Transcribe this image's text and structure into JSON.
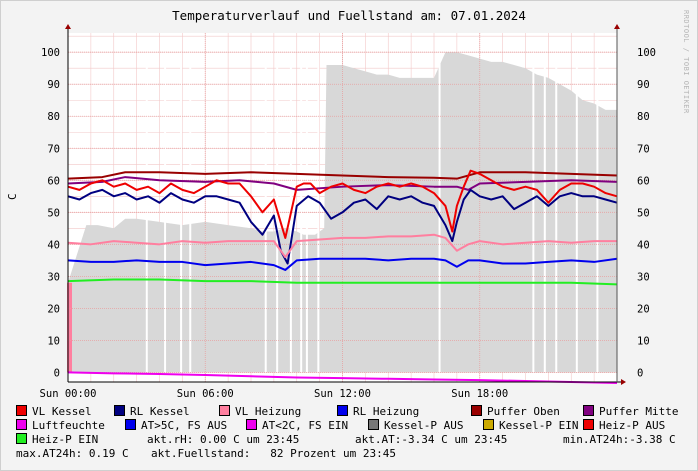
{
  "chart_data": {
    "type": "line",
    "title": "Temperaturverlauf und Fuellstand am: 07.01.2024",
    "ylabel": "C",
    "ylim": [
      -3,
      106
    ],
    "yticks": [
      0,
      10,
      20,
      30,
      40,
      50,
      60,
      70,
      80,
      90,
      100
    ],
    "xlim": [
      0,
      24
    ],
    "xticks": [
      {
        "hour": 0,
        "label": "Sun 00:00"
      },
      {
        "hour": 6,
        "label": "Sun 06:00"
      },
      {
        "hour": 12,
        "label": "Sun 12:00"
      },
      {
        "hour": 18,
        "label": "Sun 18:00"
      }
    ],
    "grid": true,
    "area": {
      "name": "Fuellstand",
      "color": "#d8d8d8",
      "x": [
        0,
        0.8,
        1.3,
        2.0,
        2.5,
        3.0,
        4.0,
        5.0,
        6.0,
        7.0,
        8.0,
        8.5,
        9.0,
        9.5,
        10.0,
        10.3,
        10.8,
        11.2,
        11.3,
        11.6,
        12.0,
        12.5,
        13.0,
        13.5,
        14.0,
        14.5,
        15.0,
        16.0,
        16.5,
        17.0,
        17.5,
        18.0,
        18.5,
        19.0,
        19.5,
        20.0,
        20.5,
        21.0,
        21.5,
        22.0,
        22.5,
        23.0,
        23.5,
        24.0
      ],
      "y": [
        28,
        46,
        46,
        45,
        48,
        48,
        47,
        46,
        47,
        46,
        45,
        44,
        44,
        45,
        44,
        43,
        43,
        45,
        96,
        96,
        96,
        95,
        94,
        93,
        93,
        92,
        92,
        92,
        100,
        100,
        99,
        98,
        97,
        97,
        96,
        95,
        93,
        92,
        90,
        88,
        85,
        84,
        82,
        82
      ]
    },
    "series": [
      {
        "name": "Puffer Oben",
        "color": "#990000",
        "x": [
          0,
          1.5,
          2.5,
          4,
          6,
          8,
          10,
          12,
          14,
          16,
          17,
          18,
          20,
          22,
          24
        ],
        "y": [
          60.5,
          61,
          62.5,
          62.5,
          62,
          62.5,
          62,
          61.5,
          61,
          60.8,
          60.5,
          62.5,
          62.5,
          62,
          61.5
        ]
      },
      {
        "name": "Puffer Mitte",
        "color": "#800080",
        "x": [
          0,
          1.5,
          2.5,
          4,
          6,
          7.5,
          9,
          10,
          12,
          14,
          16,
          17,
          17.5,
          18,
          20,
          22,
          24
        ],
        "y": [
          59,
          59.5,
          61,
          60,
          59.5,
          60,
          59,
          57,
          58,
          58.5,
          58,
          58,
          57,
          59,
          59.5,
          60,
          59.5
        ]
      },
      {
        "name": "VL Kessel",
        "color": "#ee0000",
        "x": [
          0,
          0.5,
          1,
          1.5,
          2,
          2.5,
          3,
          3.5,
          4,
          4.5,
          5,
          5.5,
          6,
          6.5,
          7,
          7.5,
          8,
          8.5,
          9,
          9.5,
          10,
          10.3,
          10.6,
          11,
          11.5,
          12,
          12.5,
          13,
          13.5,
          14,
          14.5,
          15,
          15.5,
          16,
          16.5,
          16.8,
          17,
          17.3,
          17.6,
          18,
          18.5,
          19,
          19.5,
          20,
          20.5,
          21,
          21.5,
          22,
          22.5,
          23,
          23.5,
          24
        ],
        "y": [
          58,
          57,
          59,
          60,
          58,
          59,
          57,
          58,
          56,
          59,
          57,
          56,
          58,
          60,
          59,
          59,
          55,
          50,
          54,
          42,
          58,
          59,
          59,
          56,
          58,
          59,
          57,
          56,
          58,
          59,
          58,
          59,
          58,
          56,
          52,
          44,
          52,
          58,
          63,
          62,
          60,
          58,
          57,
          58,
          57,
          53,
          57,
          59,
          59,
          58,
          56,
          55
        ]
      },
      {
        "name": "RL Kessel",
        "color": "#000080",
        "x": [
          0,
          0.5,
          1,
          1.5,
          2,
          2.5,
          3,
          3.5,
          4,
          4.5,
          5,
          5.5,
          6,
          6.5,
          7,
          7.5,
          8,
          8.5,
          9,
          9.3,
          9.6,
          10,
          10.5,
          11,
          11.5,
          12,
          12.5,
          13,
          13.5,
          14,
          14.5,
          15,
          15.5,
          16,
          16.5,
          16.8,
          17,
          17.3,
          17.6,
          18,
          18.5,
          19,
          19.5,
          20,
          20.5,
          21,
          21.5,
          22,
          22.5,
          23,
          23.5,
          24
        ],
        "y": [
          55,
          54,
          56,
          57,
          55,
          56,
          54,
          55,
          53,
          56,
          54,
          53,
          55,
          55,
          54,
          53,
          47,
          43,
          49,
          38,
          34,
          52,
          55,
          53,
          48,
          50,
          53,
          54,
          51,
          55,
          54,
          55,
          53,
          52,
          46,
          41,
          47,
          54,
          57,
          55,
          54,
          55,
          51,
          53,
          55,
          52,
          55,
          56,
          55,
          55,
          54,
          53
        ]
      },
      {
        "name": "VL Heizung",
        "color": "#ff7f9f",
        "x": [
          0,
          1,
          2,
          3,
          4,
          5,
          6,
          7,
          8,
          9,
          9.5,
          10,
          11,
          12,
          13,
          14,
          15,
          16,
          16.5,
          17,
          17.5,
          18,
          19,
          20,
          21,
          22,
          23,
          24
        ],
        "y": [
          40.5,
          40,
          41,
          40.5,
          40,
          41,
          40.5,
          41,
          41,
          41,
          36,
          41,
          41.5,
          42,
          42,
          42.5,
          42.5,
          43,
          42,
          38,
          40,
          41,
          40,
          40.5,
          41,
          40.5,
          41,
          41
        ]
      },
      {
        "name": "RL Heizung",
        "color": "#0000ee",
        "x": [
          0,
          1,
          2,
          3,
          4,
          5,
          6,
          7,
          8,
          9,
          9.5,
          10,
          11,
          12,
          13,
          14,
          15,
          16,
          16.5,
          17,
          17.5,
          18,
          19,
          20,
          21,
          22,
          23,
          24
        ],
        "y": [
          35,
          34.5,
          34.5,
          35,
          34.5,
          34.5,
          33.5,
          34,
          34.5,
          33.5,
          32,
          35,
          35.5,
          35.5,
          35.5,
          35,
          35.5,
          35.5,
          35,
          33,
          35,
          35,
          34,
          34,
          34.5,
          35,
          34.5,
          35.5
        ]
      },
      {
        "name": "Heiz-P EIN",
        "color": "#22ee22",
        "x": [
          0,
          2,
          4,
          6,
          8,
          10,
          12,
          14,
          16,
          18,
          20,
          22,
          24
        ],
        "y": [
          28.5,
          29,
          29,
          28.5,
          28.5,
          28,
          28,
          28,
          28,
          28,
          28,
          28,
          27.5
        ]
      },
      {
        "name": "Luftfeuchte",
        "color": "#ee00ee",
        "x": [
          0,
          2,
          4,
          6,
          8,
          10,
          12,
          14,
          16,
          18,
          20,
          22,
          24
        ],
        "y": [
          0,
          -0.3,
          -0.5,
          -0.8,
          -1.2,
          -1.6,
          -1.8,
          -2.0,
          -2.2,
          -2.4,
          -2.7,
          -3.0,
          -3.3
        ]
      }
    ],
    "legend": [
      {
        "label": "VL Kessel",
        "color": "#ee0000"
      },
      {
        "label": "RL Kessel",
        "color": "#000080"
      },
      {
        "label": "VL Heizung",
        "color": "#ff7f9f"
      },
      {
        "label": "RL Heizung",
        "color": "#0000ee"
      },
      {
        "label": "Puffer Oben",
        "color": "#990000"
      },
      {
        "label": "Puffer Mitte",
        "color": "#800080"
      },
      {
        "label": "Luftfeuchte",
        "color": "#ee00ee"
      },
      {
        "label": "AT>5C, FS AUS",
        "color": "#0000ee"
      },
      {
        "label": "AT<2C, FS EIN",
        "color": "#ee00ee"
      },
      {
        "label": "Kessel-P AUS",
        "color": "#777777"
      },
      {
        "label": "Kessel-P EIN",
        "color": "#ccaa00"
      },
      {
        "label": "Heiz-P AUS",
        "color": "#ee0000"
      },
      {
        "label": "Heiz-P EIN",
        "color": "#22ee22"
      }
    ],
    "stats": {
      "akt_rh": "akt.rH: 0.00 C um 23:45",
      "akt_at": "akt.AT:-3.34 C um 23:45",
      "min_at24h": "min.AT24h:-3.38 C",
      "max_at24h": "max.AT24h: 0.19 C",
      "akt_fuellstand": "akt.Fuellstand:   82 Prozent um 23:45"
    }
  },
  "watermark": "RRDTOOL / TOBI OETIKER"
}
